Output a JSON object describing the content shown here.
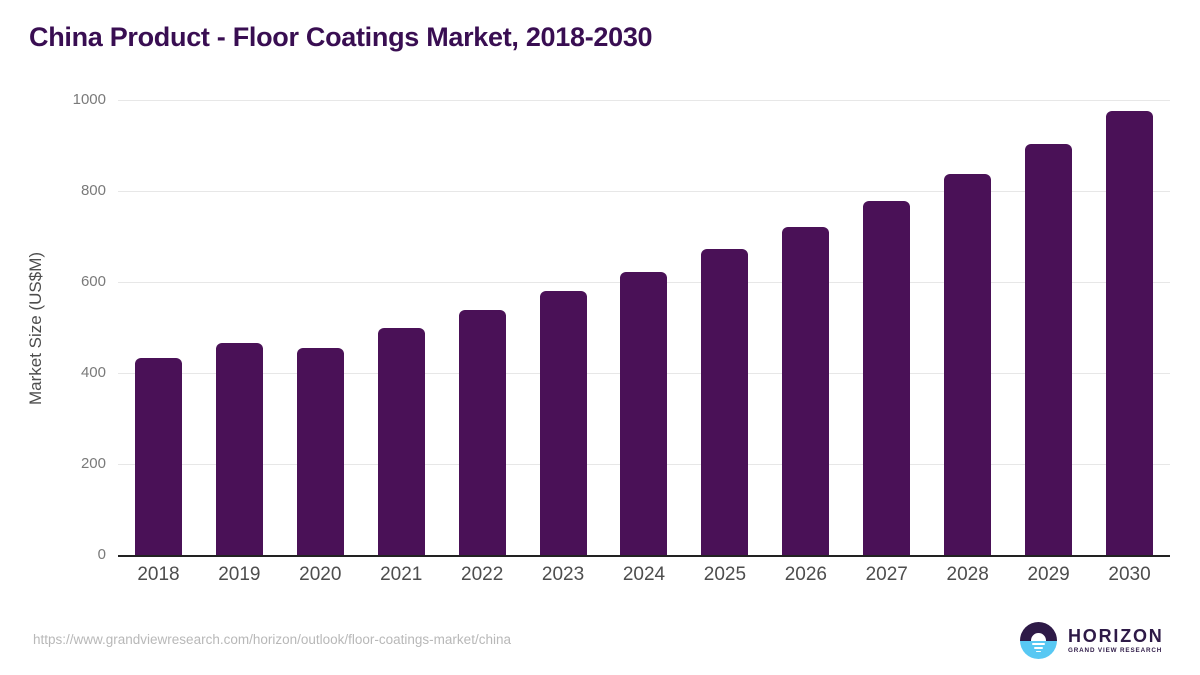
{
  "chart_data": {
    "type": "bar",
    "title": "China Product - Floor Coatings Market, 2018-2030",
    "ylabel": "Market Size (US$M)",
    "xlabel": "",
    "categories": [
      "2018",
      "2019",
      "2020",
      "2021",
      "2022",
      "2023",
      "2024",
      "2025",
      "2026",
      "2027",
      "2028",
      "2029",
      "2030"
    ],
    "values": [
      432,
      466,
      455,
      500,
      538,
      580,
      623,
      672,
      721,
      778,
      838,
      903,
      976
    ],
    "ylim": [
      0,
      1000
    ],
    "yticks": [
      0,
      200,
      400,
      600,
      800,
      1000
    ],
    "grid": "horizontal",
    "legend": "none",
    "bar_color": "#4A1157",
    "title_color": "#390E52"
  },
  "footer": {
    "source_url": "https://www.grandviewresearch.com/horizon/outlook/floor-coatings-market/china",
    "logo": {
      "name": "HORIZON",
      "tagline": "GRAND VIEW RESEARCH",
      "dark_color": "#2E1A47",
      "blue_color": "#58C8F3"
    }
  }
}
